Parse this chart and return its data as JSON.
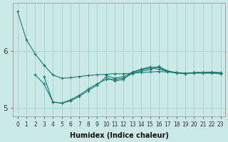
{
  "xlabel": "Humidex (Indice chaleur)",
  "ylabel": "",
  "background_color": "#cceae5",
  "grid_color": "#aad4cf",
  "line_color": "#1a7a70",
  "x_values": [
    0,
    1,
    2,
    3,
    4,
    5,
    6,
    7,
    8,
    9,
    10,
    11,
    12,
    13,
    14,
    15,
    16,
    17,
    18,
    19,
    20,
    21,
    22,
    23
  ],
  "series": [
    [
      6.7,
      6.2,
      5.95,
      5.75,
      5.58,
      5.52,
      5.53,
      5.55,
      5.57,
      5.58,
      5.59,
      5.6,
      5.6,
      5.61,
      5.62,
      5.63,
      5.64,
      5.63,
      5.62,
      5.61,
      5.61,
      5.61,
      5.61,
      5.6
    ],
    [
      null,
      null,
      5.58,
      5.42,
      5.1,
      5.08,
      5.14,
      5.22,
      5.33,
      5.42,
      5.5,
      5.5,
      5.52,
      5.6,
      5.65,
      5.67,
      5.73,
      5.65,
      5.62,
      5.6,
      5.62,
      5.62,
      5.62,
      5.61
    ],
    [
      null,
      null,
      null,
      5.55,
      5.1,
      5.08,
      5.12,
      5.2,
      5.3,
      5.4,
      5.54,
      5.47,
      5.5,
      5.63,
      5.68,
      5.72,
      5.71,
      5.64,
      5.61,
      5.6,
      5.62,
      5.62,
      5.63,
      5.62
    ],
    [
      null,
      null,
      null,
      null,
      null,
      null,
      null,
      null,
      null,
      null,
      5.57,
      5.52,
      5.55,
      5.62,
      5.67,
      5.7,
      5.68,
      5.64,
      5.62,
      5.6,
      5.62,
      5.62,
      5.62,
      5.61
    ]
  ],
  "ylim": [
    4.85,
    6.85
  ],
  "yticks": [
    5,
    6
  ],
  "ytick_labels": [
    "5",
    "6"
  ],
  "xlim": [
    -0.5,
    23.5
  ],
  "xtick_fontsize": 5.5,
  "ytick_fontsize": 7.5,
  "xlabel_fontsize": 7,
  "figsize": [
    3.2,
    2.0
  ],
  "dpi": 100
}
